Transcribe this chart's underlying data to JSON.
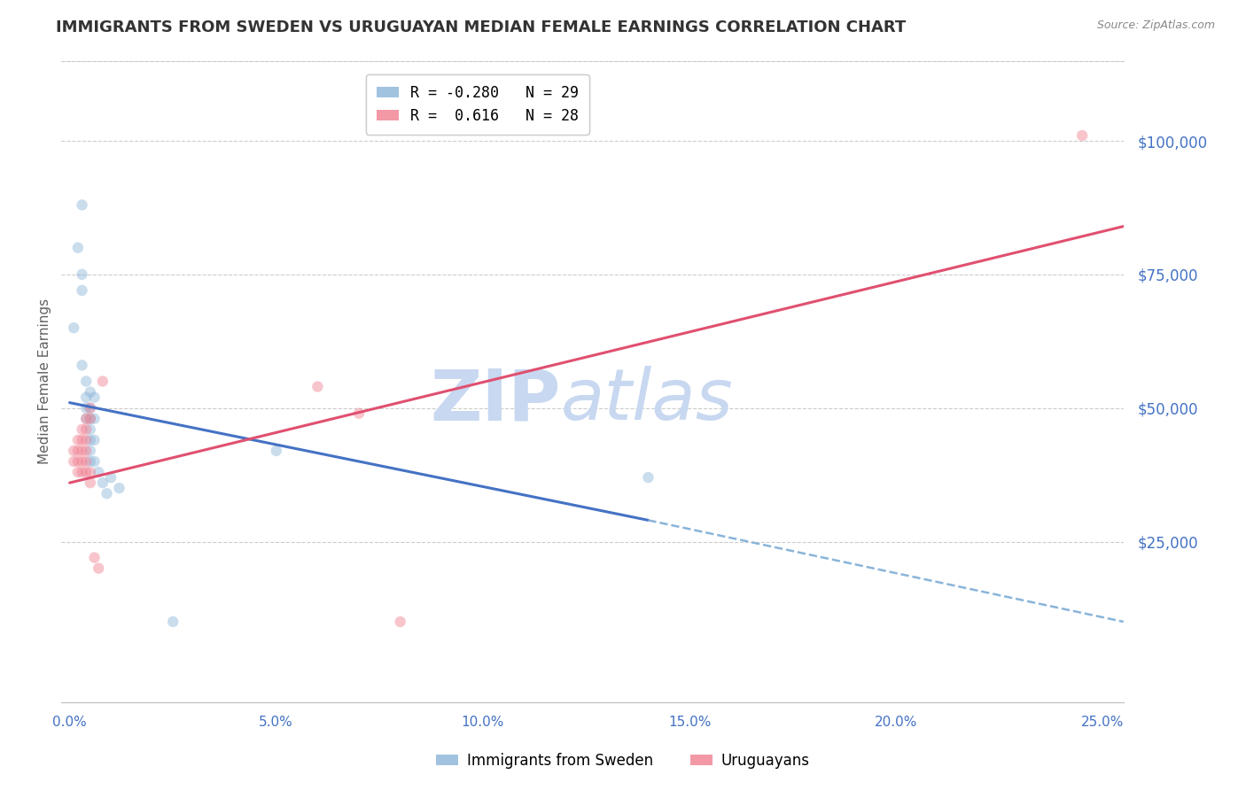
{
  "title": "IMMIGRANTS FROM SWEDEN VS URUGUAYAN MEDIAN FEMALE EARNINGS CORRELATION CHART",
  "source": "Source: ZipAtlas.com",
  "ylabel": "Median Female Earnings",
  "x_tick_labels": [
    "0.0%",
    "5.0%",
    "10.0%",
    "15.0%",
    "20.0%",
    "25.0%"
  ],
  "x_ticks": [
    0.0,
    0.05,
    0.1,
    0.15,
    0.2,
    0.25
  ],
  "y_tick_labels": [
    "$25,000",
    "$50,000",
    "$75,000",
    "$100,000"
  ],
  "y_ticks": [
    25000,
    50000,
    75000,
    100000
  ],
  "xlim": [
    -0.002,
    0.255
  ],
  "ylim": [
    -5000,
    115000
  ],
  "legend_entries": [
    {
      "label": "R = -0.280   N = 29",
      "color": "#8ab4d9"
    },
    {
      "label": "R =  0.616   N = 28",
      "color": "#f08090"
    }
  ],
  "legend_bottom": [
    "Immigrants from Sweden",
    "Uruguayans"
  ],
  "sweden_color": "#8ab4d9",
  "uruguay_color": "#f08090",
  "sweden_points": [
    [
      0.001,
      65000
    ],
    [
      0.002,
      80000
    ],
    [
      0.003,
      88000
    ],
    [
      0.003,
      75000
    ],
    [
      0.003,
      72000
    ],
    [
      0.003,
      58000
    ],
    [
      0.004,
      55000
    ],
    [
      0.004,
      52000
    ],
    [
      0.004,
      50000
    ],
    [
      0.004,
      48000
    ],
    [
      0.005,
      53000
    ],
    [
      0.005,
      50000
    ],
    [
      0.005,
      48000
    ],
    [
      0.005,
      46000
    ],
    [
      0.005,
      44000
    ],
    [
      0.005,
      42000
    ],
    [
      0.005,
      40000
    ],
    [
      0.006,
      52000
    ],
    [
      0.006,
      48000
    ],
    [
      0.006,
      44000
    ],
    [
      0.006,
      40000
    ],
    [
      0.007,
      38000
    ],
    [
      0.008,
      36000
    ],
    [
      0.009,
      34000
    ],
    [
      0.01,
      37000
    ],
    [
      0.012,
      35000
    ],
    [
      0.025,
      10000
    ],
    [
      0.14,
      37000
    ],
    [
      0.05,
      42000
    ]
  ],
  "uruguay_points": [
    [
      0.001,
      42000
    ],
    [
      0.001,
      40000
    ],
    [
      0.002,
      44000
    ],
    [
      0.002,
      42000
    ],
    [
      0.002,
      40000
    ],
    [
      0.002,
      38000
    ],
    [
      0.003,
      46000
    ],
    [
      0.003,
      44000
    ],
    [
      0.003,
      42000
    ],
    [
      0.003,
      40000
    ],
    [
      0.003,
      38000
    ],
    [
      0.004,
      48000
    ],
    [
      0.004,
      46000
    ],
    [
      0.004,
      44000
    ],
    [
      0.004,
      42000
    ],
    [
      0.004,
      40000
    ],
    [
      0.004,
      38000
    ],
    [
      0.005,
      50000
    ],
    [
      0.005,
      48000
    ],
    [
      0.005,
      38000
    ],
    [
      0.005,
      36000
    ],
    [
      0.006,
      22000
    ],
    [
      0.007,
      20000
    ],
    [
      0.008,
      55000
    ],
    [
      0.06,
      54000
    ],
    [
      0.07,
      49000
    ],
    [
      0.08,
      10000
    ],
    [
      0.245,
      101000
    ]
  ],
  "sweden_line_solid": {
    "x0": 0.0,
    "y0": 51000,
    "x1": 0.14,
    "y1": 29000
  },
  "sweden_line_dashed": {
    "x0": 0.14,
    "y0": 29000,
    "x1": 0.255,
    "y1": 10000
  },
  "uruguay_line": {
    "x0": 0.0,
    "y0": 36000,
    "x1": 0.255,
    "y1": 84000
  },
  "watermark_zip": "ZIP",
  "watermark_atlas": "atlas",
  "watermark_color": "#c8d8f0",
  "background_color": "#ffffff",
  "grid_color": "#cccccc",
  "axis_label_color": "#4472c4",
  "title_color": "#333333",
  "title_fontsize": 13,
  "marker_size": 80,
  "marker_alpha": 0.45
}
